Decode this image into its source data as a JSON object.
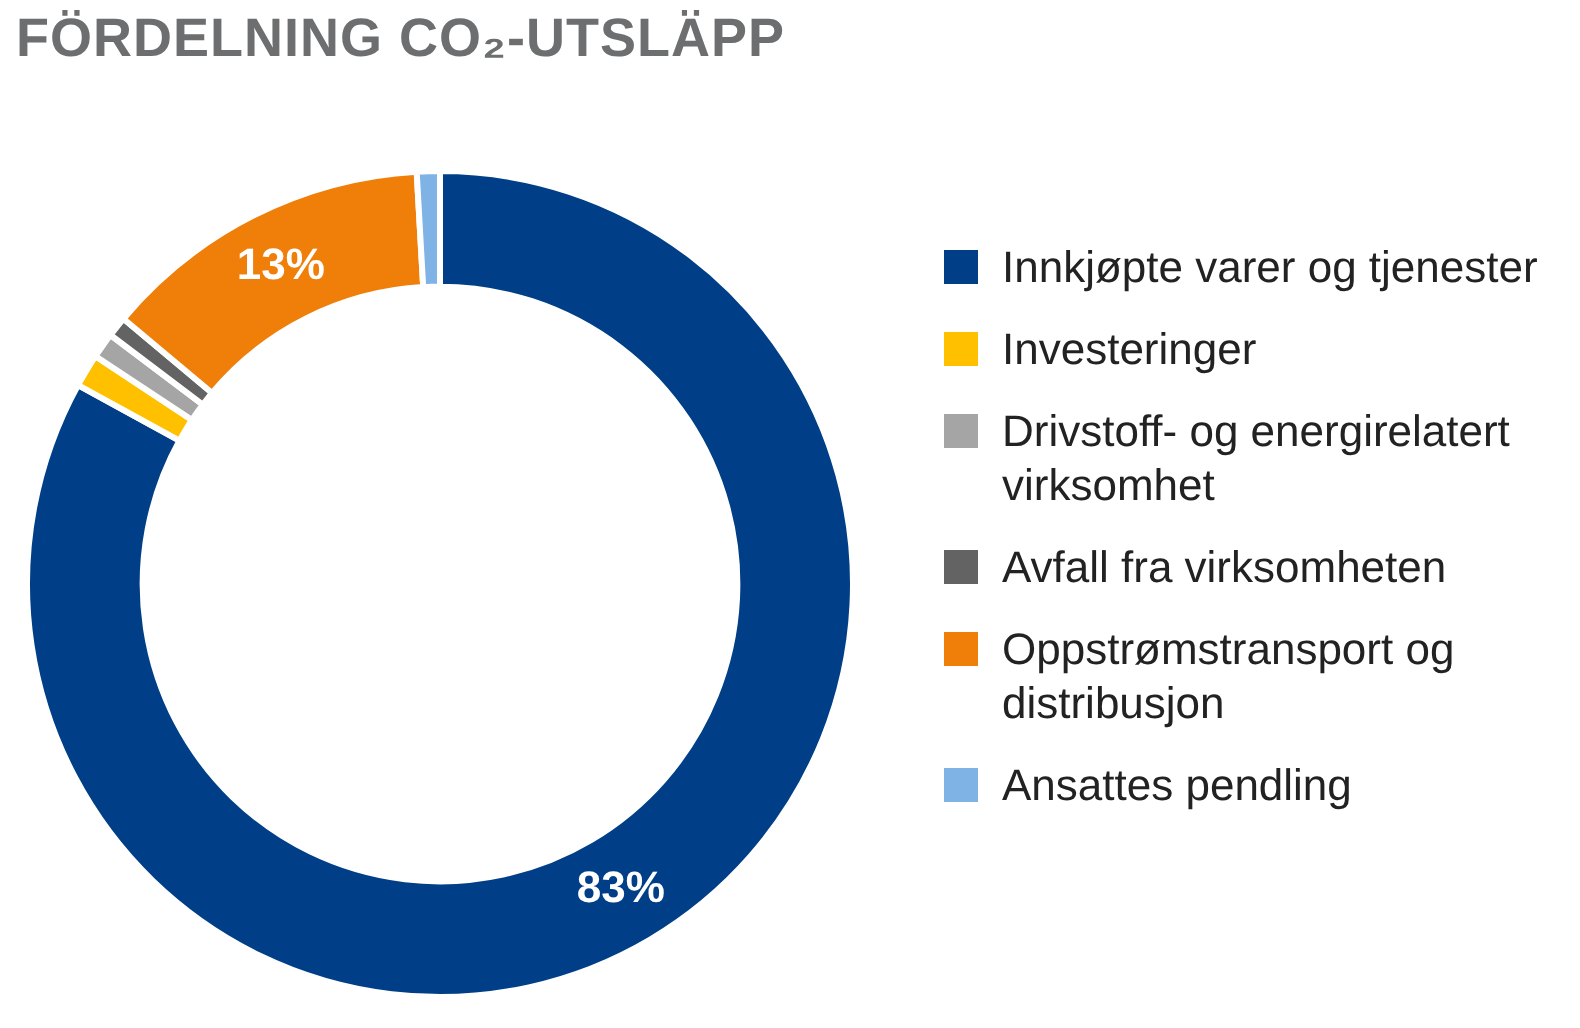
{
  "chart_data": {
    "type": "donut",
    "title": "FÖRDELNING CO₂-UTSLÄPP",
    "categories": [
      "Innkjøpte varer og tjenester",
      "Investeringer",
      "Drivstoff- og energirelatert virksomhet",
      "Avfall fra virksomheten",
      "Oppstrømstransport og distribusjon",
      "Ansattes pendling"
    ],
    "values": [
      83,
      1.3,
      1.0,
      0.8,
      13,
      0.9
    ],
    "colors": [
      "#003f87",
      "#ffc000",
      "#a5a5a5",
      "#636363",
      "#f07f09",
      "#7fb2e5"
    ],
    "value_labels": [
      "83%",
      null,
      null,
      null,
      "13%",
      null
    ],
    "legend": "right"
  }
}
